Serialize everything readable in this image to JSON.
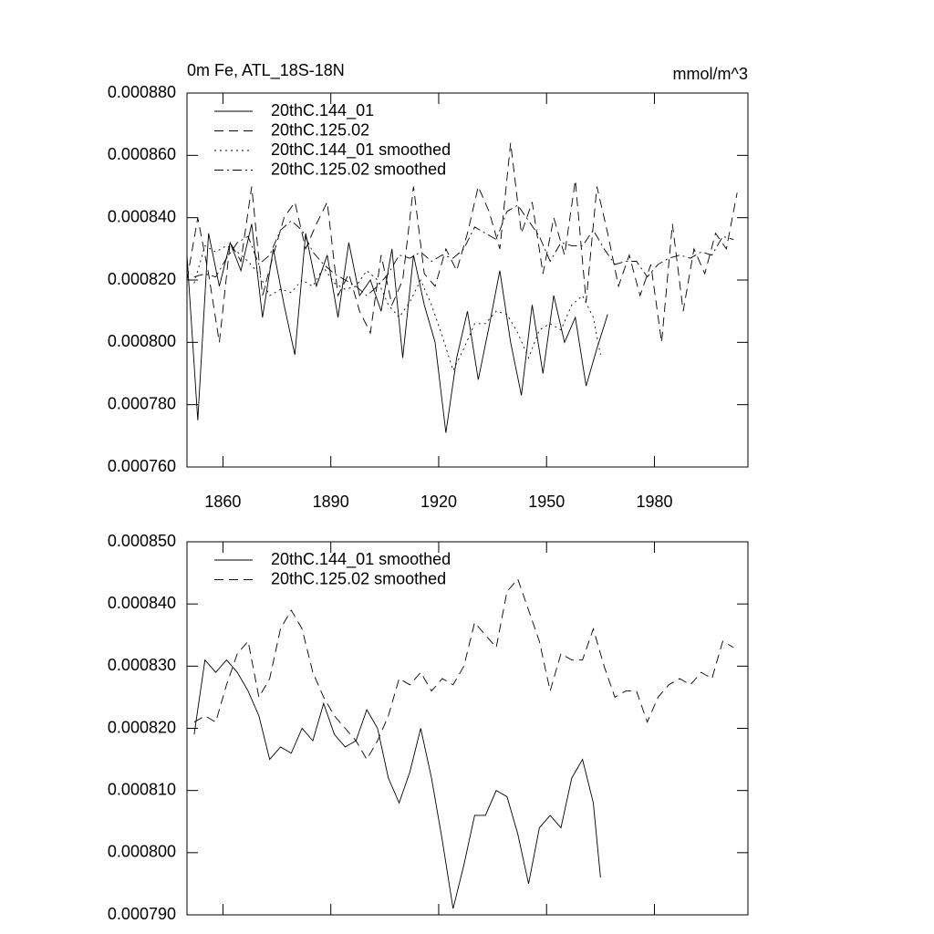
{
  "chart_data": [
    {
      "type": "line",
      "title": "0m Fe, ATL_18S-18N",
      "units": "mmol/m^3",
      "legend": "upper left",
      "xlim": [
        1850,
        2006
      ],
      "xticks": [
        1860,
        1890,
        1920,
        1950,
        1980
      ],
      "show_xtick_labels": true,
      "ylim": [
        0.00076,
        0.00088
      ],
      "yticks": [
        {
          "value": 0.00076,
          "label": "0.000760"
        },
        {
          "value": 0.00078,
          "label": "0.000780"
        },
        {
          "value": 0.0008,
          "label": "0.000800"
        },
        {
          "value": 0.00082,
          "label": "0.000820"
        },
        {
          "value": 0.00084,
          "label": "0.000840"
        },
        {
          "value": 0.00086,
          "label": "0.000860"
        },
        {
          "value": 0.00088,
          "label": "0.000880"
        }
      ],
      "series": [
        {
          "name": "20thC.144_01",
          "color": "#000000",
          "style": "solid",
          "x": [
            1850,
            1853,
            1856,
            1859,
            1862,
            1865,
            1868,
            1871,
            1874,
            1877,
            1880,
            1883,
            1886,
            1889,
            1892,
            1895,
            1898,
            1901,
            1904,
            1907,
            1910,
            1913,
            1916,
            1919,
            1922,
            1925,
            1928,
            1931,
            1934,
            1937,
            1940,
            1943,
            1946,
            1949,
            1952,
            1955,
            1958,
            1961,
            1964,
            1967
          ],
          "values": [
            0.000828,
            0.000775,
            0.000835,
            0.000818,
            0.000832,
            0.000823,
            0.000838,
            0.000808,
            0.00083,
            0.000812,
            0.000796,
            0.000835,
            0.000818,
            0.000828,
            0.000808,
            0.000832,
            0.000815,
            0.00082,
            0.00081,
            0.00083,
            0.000795,
            0.000828,
            0.000812,
            0.0008,
            0.000771,
            0.000795,
            0.00081,
            0.000788,
            0.000805,
            0.000823,
            0.0008,
            0.000783,
            0.000812,
            0.00079,
            0.000815,
            0.0008,
            0.000808,
            0.000786,
            0.000798,
            0.000809
          ]
        },
        {
          "name": "20thC.125.02",
          "color": "#000000",
          "style": "dashed",
          "x": [
            1850,
            1853,
            1856,
            1859,
            1862,
            1865,
            1868,
            1871,
            1874,
            1877,
            1880,
            1883,
            1886,
            1889,
            1892,
            1895,
            1898,
            1901,
            1904,
            1907,
            1910,
            1913,
            1916,
            1919,
            1922,
            1925,
            1928,
            1931,
            1934,
            1937,
            1940,
            1943,
            1946,
            1949,
            1952,
            1955,
            1958,
            1961,
            1964,
            1967,
            1970,
            1973,
            1976,
            1979,
            1982,
            1985,
            1988,
            1991,
            1994,
            1997,
            2000,
            2003
          ],
          "values": [
            0.00082,
            0.00084,
            0.000822,
            0.0008,
            0.000832,
            0.000826,
            0.00085,
            0.000815,
            0.000828,
            0.00084,
            0.000845,
            0.00083,
            0.000838,
            0.000845,
            0.000815,
            0.000822,
            0.00081,
            0.000803,
            0.000828,
            0.000812,
            0.00082,
            0.00085,
            0.000822,
            0.000818,
            0.00083,
            0.000823,
            0.000835,
            0.00085,
            0.000842,
            0.00083,
            0.000864,
            0.000835,
            0.000845,
            0.000822,
            0.00084,
            0.000828,
            0.000852,
            0.000813,
            0.00085,
            0.000835,
            0.000818,
            0.000828,
            0.000815,
            0.000825,
            0.0008,
            0.000838,
            0.00081,
            0.00083,
            0.000822,
            0.000835,
            0.00083,
            0.000848
          ]
        },
        {
          "name": "20thC.144_01 smoothed",
          "color": "#000000",
          "style": "dotted",
          "x": [
            1852,
            1855,
            1858,
            1861,
            1864,
            1867,
            1870,
            1873,
            1876,
            1879,
            1882,
            1885,
            1888,
            1891,
            1894,
            1897,
            1900,
            1903,
            1906,
            1909,
            1912,
            1915,
            1918,
            1921,
            1924,
            1927,
            1930,
            1933,
            1936,
            1939,
            1942,
            1945,
            1948,
            1951,
            1954,
            1957,
            1960,
            1963,
            1965
          ],
          "values": [
            0.000819,
            0.000831,
            0.000829,
            0.000831,
            0.000829,
            0.000826,
            0.000822,
            0.000815,
            0.000817,
            0.000816,
            0.00082,
            0.000818,
            0.000824,
            0.000819,
            0.000817,
            0.000818,
            0.000823,
            0.00082,
            0.000812,
            0.000808,
            0.000813,
            0.00082,
            0.000812,
            0.000802,
            0.000791,
            0.000798,
            0.000806,
            0.000806,
            0.00081,
            0.000809,
            0.000803,
            0.000795,
            0.000804,
            0.000806,
            0.000804,
            0.000812,
            0.000815,
            0.000808,
            0.000796
          ]
        },
        {
          "name": "20thC.125.02 smoothed",
          "color": "#000000",
          "style": "dashdot",
          "x": [
            1852,
            1855,
            1858,
            1861,
            1864,
            1867,
            1870,
            1873,
            1876,
            1879,
            1882,
            1885,
            1888,
            1891,
            1894,
            1897,
            1900,
            1903,
            1906,
            1909,
            1912,
            1915,
            1918,
            1921,
            1924,
            1927,
            1930,
            1933,
            1936,
            1939,
            1942,
            1945,
            1948,
            1951,
            1954,
            1957,
            1960,
            1963,
            1966,
            1969,
            1972,
            1975,
            1978,
            1981,
            1984,
            1987,
            1990,
            1993,
            1996,
            1999,
            2002
          ],
          "values": [
            0.000821,
            0.000822,
            0.000821,
            0.000827,
            0.000832,
            0.000834,
            0.000825,
            0.000828,
            0.000836,
            0.000839,
            0.000836,
            0.000829,
            0.000825,
            0.000822,
            0.00082,
            0.000818,
            0.000815,
            0.000818,
            0.000822,
            0.000828,
            0.000827,
            0.000829,
            0.000826,
            0.000828,
            0.000827,
            0.00083,
            0.000837,
            0.000835,
            0.000833,
            0.000842,
            0.000844,
            0.000839,
            0.000834,
            0.000826,
            0.000832,
            0.000831,
            0.000831,
            0.000836,
            0.00083,
            0.000825,
            0.000826,
            0.000826,
            0.000821,
            0.000825,
            0.000827,
            0.000828,
            0.000827,
            0.000829,
            0.000828,
            0.000834,
            0.000833
          ]
        }
      ]
    },
    {
      "type": "line",
      "legend": "upper left",
      "xlim": [
        1850,
        2006
      ],
      "xticks": [
        1860,
        1890,
        1920,
        1950,
        1980
      ],
      "show_xtick_labels": false,
      "ylim": [
        0.00079,
        0.00085
      ],
      "yticks": [
        {
          "value": 0.00079,
          "label": "0.000790"
        },
        {
          "value": 0.0008,
          "label": "0.000800"
        },
        {
          "value": 0.00081,
          "label": "0.000810"
        },
        {
          "value": 0.00082,
          "label": "0.000820"
        },
        {
          "value": 0.00083,
          "label": "0.000830"
        },
        {
          "value": 0.00084,
          "label": "0.000840"
        },
        {
          "value": 0.00085,
          "label": "0.000850"
        }
      ],
      "series": [
        {
          "name": "20thC.144_01 smoothed",
          "color": "#000000",
          "style": "solid",
          "x": [
            1852,
            1855,
            1858,
            1861,
            1864,
            1867,
            1870,
            1873,
            1876,
            1879,
            1882,
            1885,
            1888,
            1891,
            1894,
            1897,
            1900,
            1903,
            1906,
            1909,
            1912,
            1915,
            1918,
            1921,
            1924,
            1927,
            1930,
            1933,
            1936,
            1939,
            1942,
            1945,
            1948,
            1951,
            1954,
            1957,
            1960,
            1963,
            1965
          ],
          "values": [
            0.000819,
            0.000831,
            0.000829,
            0.000831,
            0.000829,
            0.000826,
            0.000822,
            0.000815,
            0.000817,
            0.000816,
            0.00082,
            0.000818,
            0.000824,
            0.000819,
            0.000817,
            0.000818,
            0.000823,
            0.00082,
            0.000812,
            0.000808,
            0.000813,
            0.00082,
            0.000812,
            0.000802,
            0.000791,
            0.000798,
            0.000806,
            0.000806,
            0.00081,
            0.000809,
            0.000803,
            0.000795,
            0.000804,
            0.000806,
            0.000804,
            0.000812,
            0.000815,
            0.000808,
            0.000796
          ]
        },
        {
          "name": "20thC.125.02 smoothed",
          "color": "#000000",
          "style": "dashed",
          "x": [
            1852,
            1855,
            1858,
            1861,
            1864,
            1867,
            1870,
            1873,
            1876,
            1879,
            1882,
            1885,
            1888,
            1891,
            1894,
            1897,
            1900,
            1903,
            1906,
            1909,
            1912,
            1915,
            1918,
            1921,
            1924,
            1927,
            1930,
            1933,
            1936,
            1939,
            1942,
            1945,
            1948,
            1951,
            1954,
            1957,
            1960,
            1963,
            1966,
            1969,
            1972,
            1975,
            1978,
            1981,
            1984,
            1987,
            1990,
            1993,
            1996,
            1999,
            2002
          ],
          "values": [
            0.000821,
            0.000822,
            0.000821,
            0.000827,
            0.000832,
            0.000834,
            0.000825,
            0.000828,
            0.000836,
            0.000839,
            0.000836,
            0.000829,
            0.000825,
            0.000822,
            0.00082,
            0.000818,
            0.000815,
            0.000818,
            0.000822,
            0.000828,
            0.000827,
            0.000829,
            0.000826,
            0.000828,
            0.000827,
            0.00083,
            0.000837,
            0.000835,
            0.000833,
            0.000842,
            0.000844,
            0.000839,
            0.000834,
            0.000826,
            0.000832,
            0.000831,
            0.000831,
            0.000836,
            0.00083,
            0.000825,
            0.000826,
            0.000826,
            0.000821,
            0.000825,
            0.000827,
            0.000828,
            0.000827,
            0.000829,
            0.000828,
            0.000834,
            0.000833
          ]
        }
      ]
    }
  ]
}
